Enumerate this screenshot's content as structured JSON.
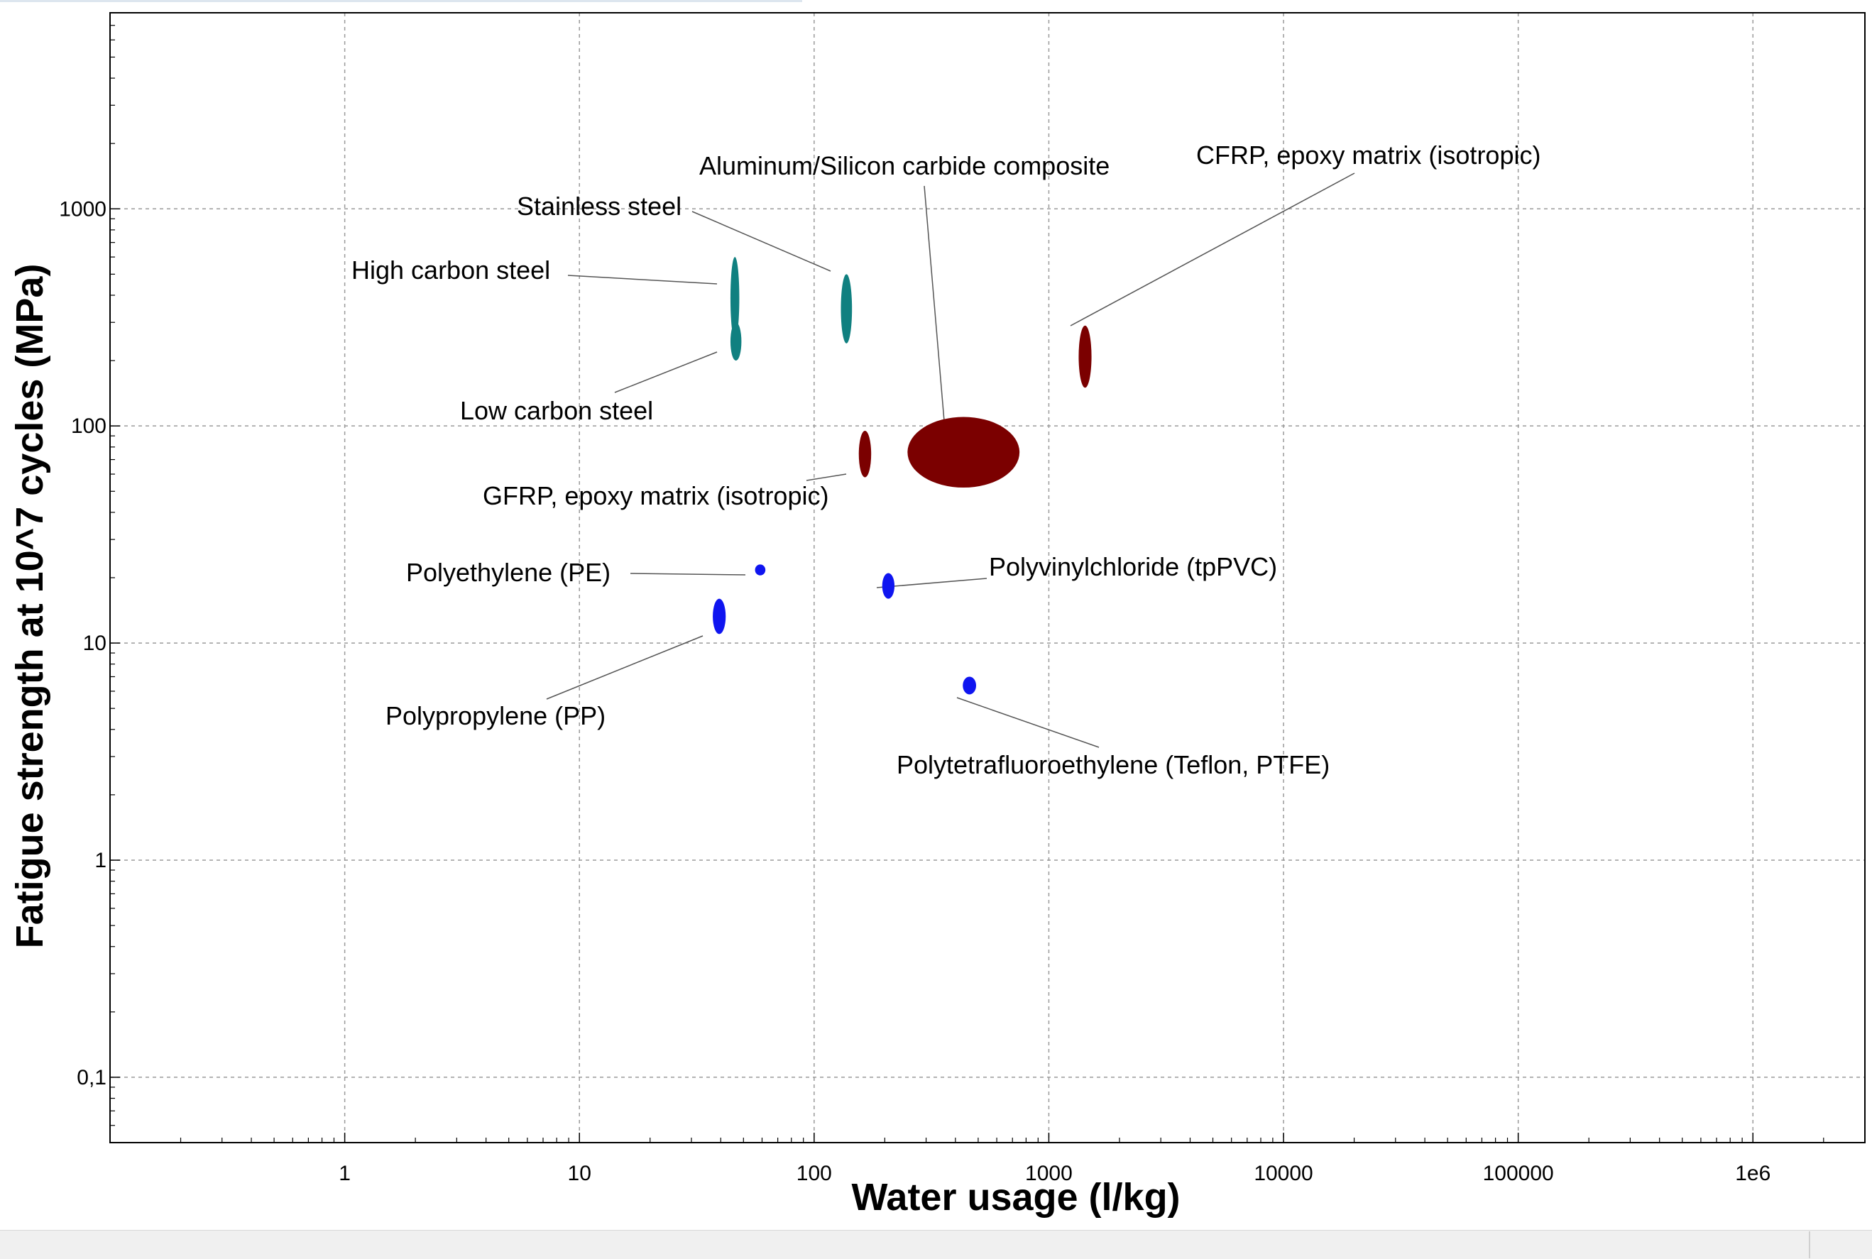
{
  "chart_data": {
    "type": "scatter",
    "title": "",
    "xlabel": "Water usage (l/kg)",
    "ylabel": "Fatigue strength at 10^7 cycles (MPa)",
    "x_scale": "log",
    "y_scale": "log",
    "xlim": [
      0.1,
      3000000
    ],
    "ylim": [
      0.05,
      8000
    ],
    "grid": true,
    "x_tick_values": [
      1,
      10,
      100,
      1000,
      10000,
      100000,
      1000000
    ],
    "x_tick_labels": [
      "1",
      "10",
      "100",
      "1000",
      "10000",
      "100000",
      "1e6"
    ],
    "y_tick_values": [
      0.1,
      1,
      10,
      100,
      1000
    ],
    "y_tick_labels": [
      "0,1",
      "1",
      "10",
      "100",
      "1000"
    ],
    "colors": {
      "metals": "#108080",
      "composites": "#7b0000",
      "polymers": "#0f15f0",
      "grid": "#9a9a9a",
      "axis": "#000000"
    },
    "points": [
      {
        "name": "High carbon steel",
        "group": "metals",
        "x": [
          44,
          48
        ],
        "y": [
          250,
          600
        ],
        "label": "High carbon steel"
      },
      {
        "name": "Stainless steel",
        "group": "metals",
        "x": [
          130,
          145
        ],
        "y": [
          240,
          500
        ],
        "label": "Stainless steel"
      },
      {
        "name": "Low carbon steel",
        "group": "metals",
        "x": [
          44,
          49
        ],
        "y": [
          200,
          300
        ],
        "label": "Low carbon steel"
      },
      {
        "name": "CFRP, epoxy matrix (isotropic)",
        "group": "composites",
        "x": [
          1340,
          1520
        ],
        "y": [
          150,
          290
        ],
        "label": "CFRP, epoxy matrix (isotropic)"
      },
      {
        "name": "Aluminum/Silicon carbide composite",
        "group": "composites",
        "x": [
          250,
          750
        ],
        "y": [
          52,
          110
        ],
        "label": "Aluminum/Silicon carbide composite"
      },
      {
        "name": "GFRP, epoxy matrix (isotropic)",
        "group": "composites",
        "x": [
          155,
          175
        ],
        "y": [
          58,
          95
        ],
        "label": "GFRP, epoxy matrix (isotropic)"
      },
      {
        "name": "Polyethylene (PE)",
        "group": "polymers",
        "x": [
          56,
          62
        ],
        "y": [
          20.5,
          23
        ],
        "label": "Polyethylene (PE)"
      },
      {
        "name": "Polyvinylchloride (tpPVC)",
        "group": "polymers",
        "x": [
          195,
          220
        ],
        "y": [
          16,
          21
        ],
        "label": "Polyvinylchloride (tpPVC)"
      },
      {
        "name": "Polypropylene (PP)",
        "group": "polymers",
        "x": [
          37,
          42
        ],
        "y": [
          11,
          16
        ],
        "label": "Polypropylene (PP)"
      },
      {
        "name": "Polytetrafluoroethylene (Teflon, PTFE)",
        "group": "polymers",
        "x": [
          430,
          490
        ],
        "y": [
          5.8,
          7
        ],
        "label": "Polytetrafluoroethylene (Teflon, PTFE)"
      }
    ]
  }
}
